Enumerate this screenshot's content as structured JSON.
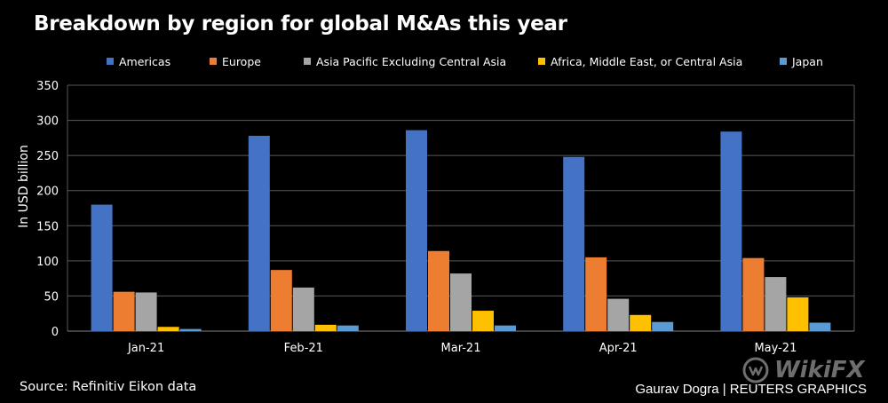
{
  "title": "Breakdown by region for global M&As this year",
  "source": "Source: Refinitiv Eikon data",
  "credit": "Gaurav Dogra | REUTERS GRAPHICS",
  "watermark": "WikiFX",
  "colors": {
    "background": "#000000",
    "grid": "#595959",
    "text": "#ffffff"
  },
  "chart_data": {
    "type": "bar",
    "title": "Breakdown by region for global M&As this year",
    "xlabel": "",
    "ylabel": "In USD billion",
    "ylim": [
      0,
      350
    ],
    "yticks": [
      0,
      50,
      100,
      150,
      200,
      250,
      300,
      350
    ],
    "grid": true,
    "legend_position": "top",
    "categories": [
      "Jan-21",
      "Feb-21",
      "Mar-21",
      "Apr-21",
      "May-21"
    ],
    "series": [
      {
        "name": "Americas",
        "color": "#4472c4",
        "values": [
          180,
          278,
          286,
          248,
          284
        ]
      },
      {
        "name": "Europe",
        "color": "#ed7d31",
        "values": [
          56,
          87,
          114,
          105,
          104
        ]
      },
      {
        "name": "Asia Pacific Excluding Central Asia",
        "color": "#a5a5a5",
        "values": [
          55,
          62,
          82,
          46,
          77
        ]
      },
      {
        "name": "Africa, Middle East, or Central Asia",
        "color": "#ffc000",
        "values": [
          6,
          9,
          29,
          23,
          48
        ]
      },
      {
        "name": "Japan",
        "color": "#5b9bd5",
        "values": [
          3,
          8,
          8,
          13,
          12
        ]
      }
    ]
  }
}
